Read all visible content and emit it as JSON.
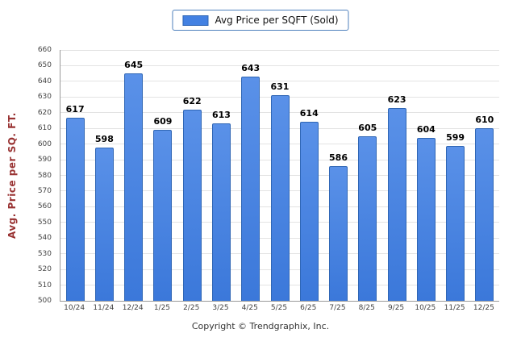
{
  "legend": {
    "label": "Avg Price per SQFT (Sold)",
    "swatch_color": "#4381e2"
  },
  "y_axis": {
    "label": "Avg. Price per SQ. FT."
  },
  "footer": {
    "copyright": "Copyright © Trendgraphix, Inc."
  },
  "colors": {
    "bar_fill": "#4381e2",
    "bar_border": "#2f66b5",
    "ylabel_color": "#993333",
    "frame_tint": "#d9e6f7"
  },
  "chart_data": {
    "type": "bar",
    "categories": [
      "10/24",
      "11/24",
      "12/24",
      "1/25",
      "2/25",
      "3/25",
      "4/25",
      "5/25",
      "6/25",
      "7/25",
      "8/25",
      "9/25",
      "10/25",
      "11/25",
      "12/25"
    ],
    "values": [
      617,
      598,
      645,
      609,
      622,
      613,
      643,
      631,
      614,
      586,
      605,
      623,
      604,
      599,
      610
    ],
    "title": "Avg Price per SQFT (Sold)",
    "xlabel": "",
    "ylabel": "Avg. Price per SQ. FT.",
    "ylim": [
      500,
      660
    ],
    "ytick_step": 10,
    "grid": true,
    "legend_position": "top"
  }
}
